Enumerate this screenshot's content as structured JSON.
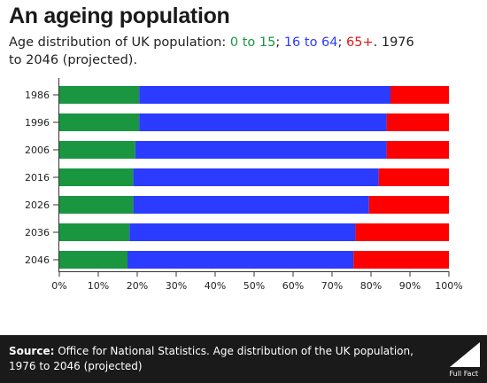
{
  "header": {
    "title": "An ageing population",
    "subtitle_prefix": "Age distribution of UK population: ",
    "sub_0_15": "0 to 15",
    "sep1": "; ",
    "sub_16_64": "16 to 64",
    "sep2": "; ",
    "sub_65": "65+",
    "subtitle_suffix": ". 1976 to 2046 (projected)."
  },
  "footer": {
    "source_label": "Source:",
    "source_text": " Office for National Statistics.  Age distribution of the UK population, 1976 to 2046 (projected)",
    "logo_text": "Full Fact"
  },
  "colors": {
    "green": "#1a9641",
    "blue": "#2b3bff",
    "red": "#ff0000"
  },
  "chart_data": {
    "type": "bar",
    "orientation": "horizontal",
    "stacked": true,
    "categories": [
      "1986",
      "1996",
      "2006",
      "2016",
      "2026",
      "2036",
      "2046"
    ],
    "series": [
      {
        "name": "0 to 15",
        "color": "#1a9641",
        "values": [
          20.5,
          20.5,
          19.5,
          19.0,
          19.0,
          18.0,
          17.5
        ]
      },
      {
        "name": "16 to 64",
        "color": "#2b3bff",
        "values": [
          64.5,
          63.5,
          64.5,
          63.0,
          60.5,
          58.0,
          58.0
        ]
      },
      {
        "name": "65+",
        "color": "#ff0000",
        "values": [
          15.0,
          16.0,
          16.0,
          18.0,
          20.5,
          24.0,
          24.5
        ]
      }
    ],
    "xticks": [
      "0%",
      "10%",
      "20%",
      "30%",
      "40%",
      "50%",
      "60%",
      "70%",
      "80%",
      "90%",
      "100%"
    ],
    "xlim": [
      0,
      100
    ],
    "grid": false,
    "legend": "in subtitle"
  }
}
